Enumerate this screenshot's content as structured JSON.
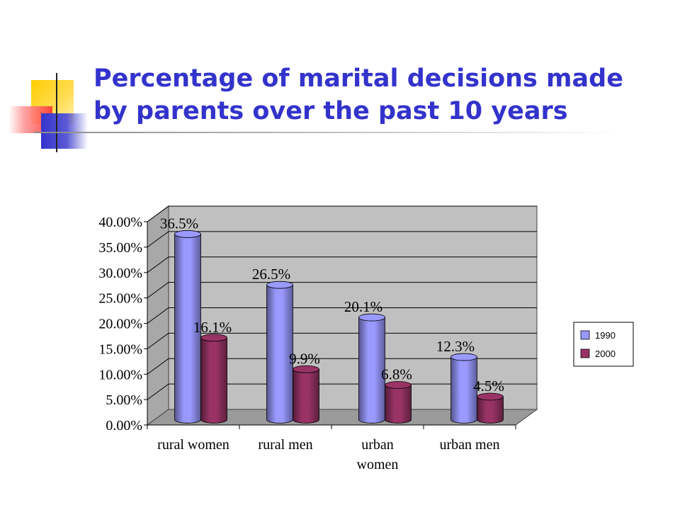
{
  "slide": {
    "title": "Percentage of marital decisions made\nby parents over the past 10 years"
  },
  "colors": {
    "title": "#3333cc",
    "plot_back": "#c0c0c0",
    "series_1990": "#9999ff",
    "series_2000": "#993366",
    "deco_yellow": "#ffcc00",
    "deco_blue": "#3333cc",
    "deco_red": "#ff3333"
  },
  "chart_data": {
    "type": "bar",
    "title": "",
    "xlabel": "",
    "ylabel": "",
    "categories": [
      "rural women",
      "rural men",
      "urban women",
      "urban men"
    ],
    "category_lines": [
      [
        "rural women"
      ],
      [
        "rural men"
      ],
      [
        "urban",
        "women"
      ],
      [
        "urban men"
      ]
    ],
    "series": [
      {
        "name": "1990",
        "values": [
          36.5,
          26.5,
          20.1,
          12.3
        ],
        "labels": [
          "36.5%",
          "26.5%",
          "20.1%",
          "12.3%"
        ]
      },
      {
        "name": "2000",
        "values": [
          16.1,
          9.9,
          6.8,
          4.5
        ],
        "labels": [
          "16.1%",
          "9.9%",
          "6.8%",
          "4.5%"
        ]
      }
    ],
    "ylim": [
      0,
      40
    ],
    "yticks": [
      "0.00%",
      "5.00%",
      "10.00%",
      "15.00%",
      "20.00%",
      "25.00%",
      "30.00%",
      "35.00%",
      "40.00%"
    ],
    "grid": true,
    "legend": "right",
    "three_d": true
  }
}
